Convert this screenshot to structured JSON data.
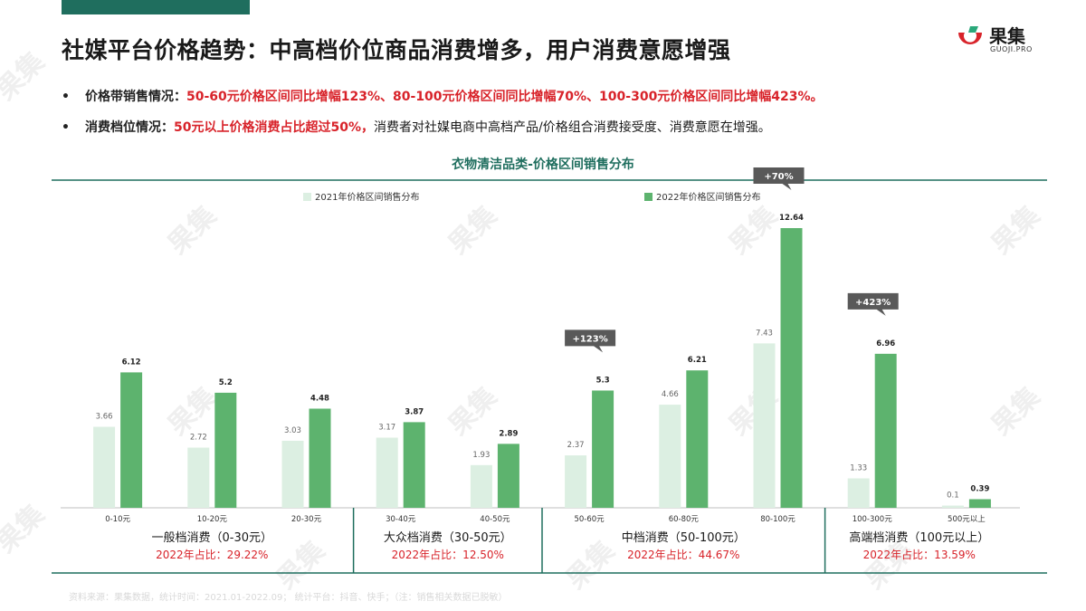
{
  "header": {
    "title": "社媒平台价格趋势：中高档价位商品消费增多，用户消费意愿增强"
  },
  "logo": {
    "name": "果集",
    "sub": "GUOJI.PRO",
    "watermark": "果集"
  },
  "bullets": [
    {
      "dot": "•",
      "label": "价格带销售情况：",
      "red": "50-60元价格区间同比增幅123%、80-100元价格区间同比增幅70%、100-300元价格区间同比增幅423%。",
      "plain": ""
    },
    {
      "dot": "•",
      "label": "消费档位情况：",
      "red": "50元以上价格消费占比超过50%，",
      "plain": "消费者对社媒电商中高档产品/价格组合消费接受度、消费意愿在增强。"
    }
  ],
  "chart_data": {
    "type": "bar",
    "title": "衣物清洁品类-价格区间销售分布",
    "categories": [
      "0-10元",
      "10-20元",
      "20-30元",
      "30-40元",
      "40-50元",
      "50-60元",
      "60-80元",
      "80-100元",
      "100-300元",
      "500元以上"
    ],
    "series": [
      {
        "name": "2021年价格区间销售分布",
        "color": "#dcefe2",
        "values": [
          3.66,
          2.72,
          3.03,
          3.17,
          1.93,
          2.37,
          4.66,
          7.43,
          1.33,
          0.1
        ]
      },
      {
        "name": "2022年价格区间销售分布",
        "color": "#5db36e",
        "values": [
          6.12,
          5.2,
          4.48,
          3.87,
          2.89,
          5.3,
          6.21,
          12.64,
          6.96,
          0.39
        ]
      }
    ],
    "ylim": [
      0,
      12.64
    ],
    "legend_position": "top",
    "callouts": [
      {
        "category": "50-60元",
        "text": "+123%"
      },
      {
        "category": "80-100元",
        "text": "+70%"
      },
      {
        "category": "100-300元",
        "text": "+423%"
      }
    ],
    "groups": [
      {
        "name": "一般档消费（0-30元）",
        "share": "2022年占比：29.22%",
        "categories": [
          "0-10元",
          "10-20元",
          "20-30元"
        ]
      },
      {
        "name": "大众档消费（30-50元）",
        "share": "2022年占比：12.50%",
        "categories": [
          "30-40元",
          "40-50元"
        ]
      },
      {
        "name": "中档消费（50-100元）",
        "share": "2022年占比：44.67%",
        "categories": [
          "50-60元",
          "60-80元",
          "80-100元"
        ]
      },
      {
        "name": "高端档消费（100元以上）",
        "share": "2022年占比：13.59%",
        "categories": [
          "100-300元",
          "500元以上"
        ]
      }
    ]
  },
  "footnote": "资料来源：果集数据，统计时间：2021.01-2022.09；  统计平台：抖音、快手；（注：销售相关数据已脱敏）",
  "colors": {
    "accent": "#1f6e5e",
    "red": "#d8232a",
    "bar2021": "#dcefe2",
    "bar2022": "#5db36e",
    "callout": "#595959"
  }
}
